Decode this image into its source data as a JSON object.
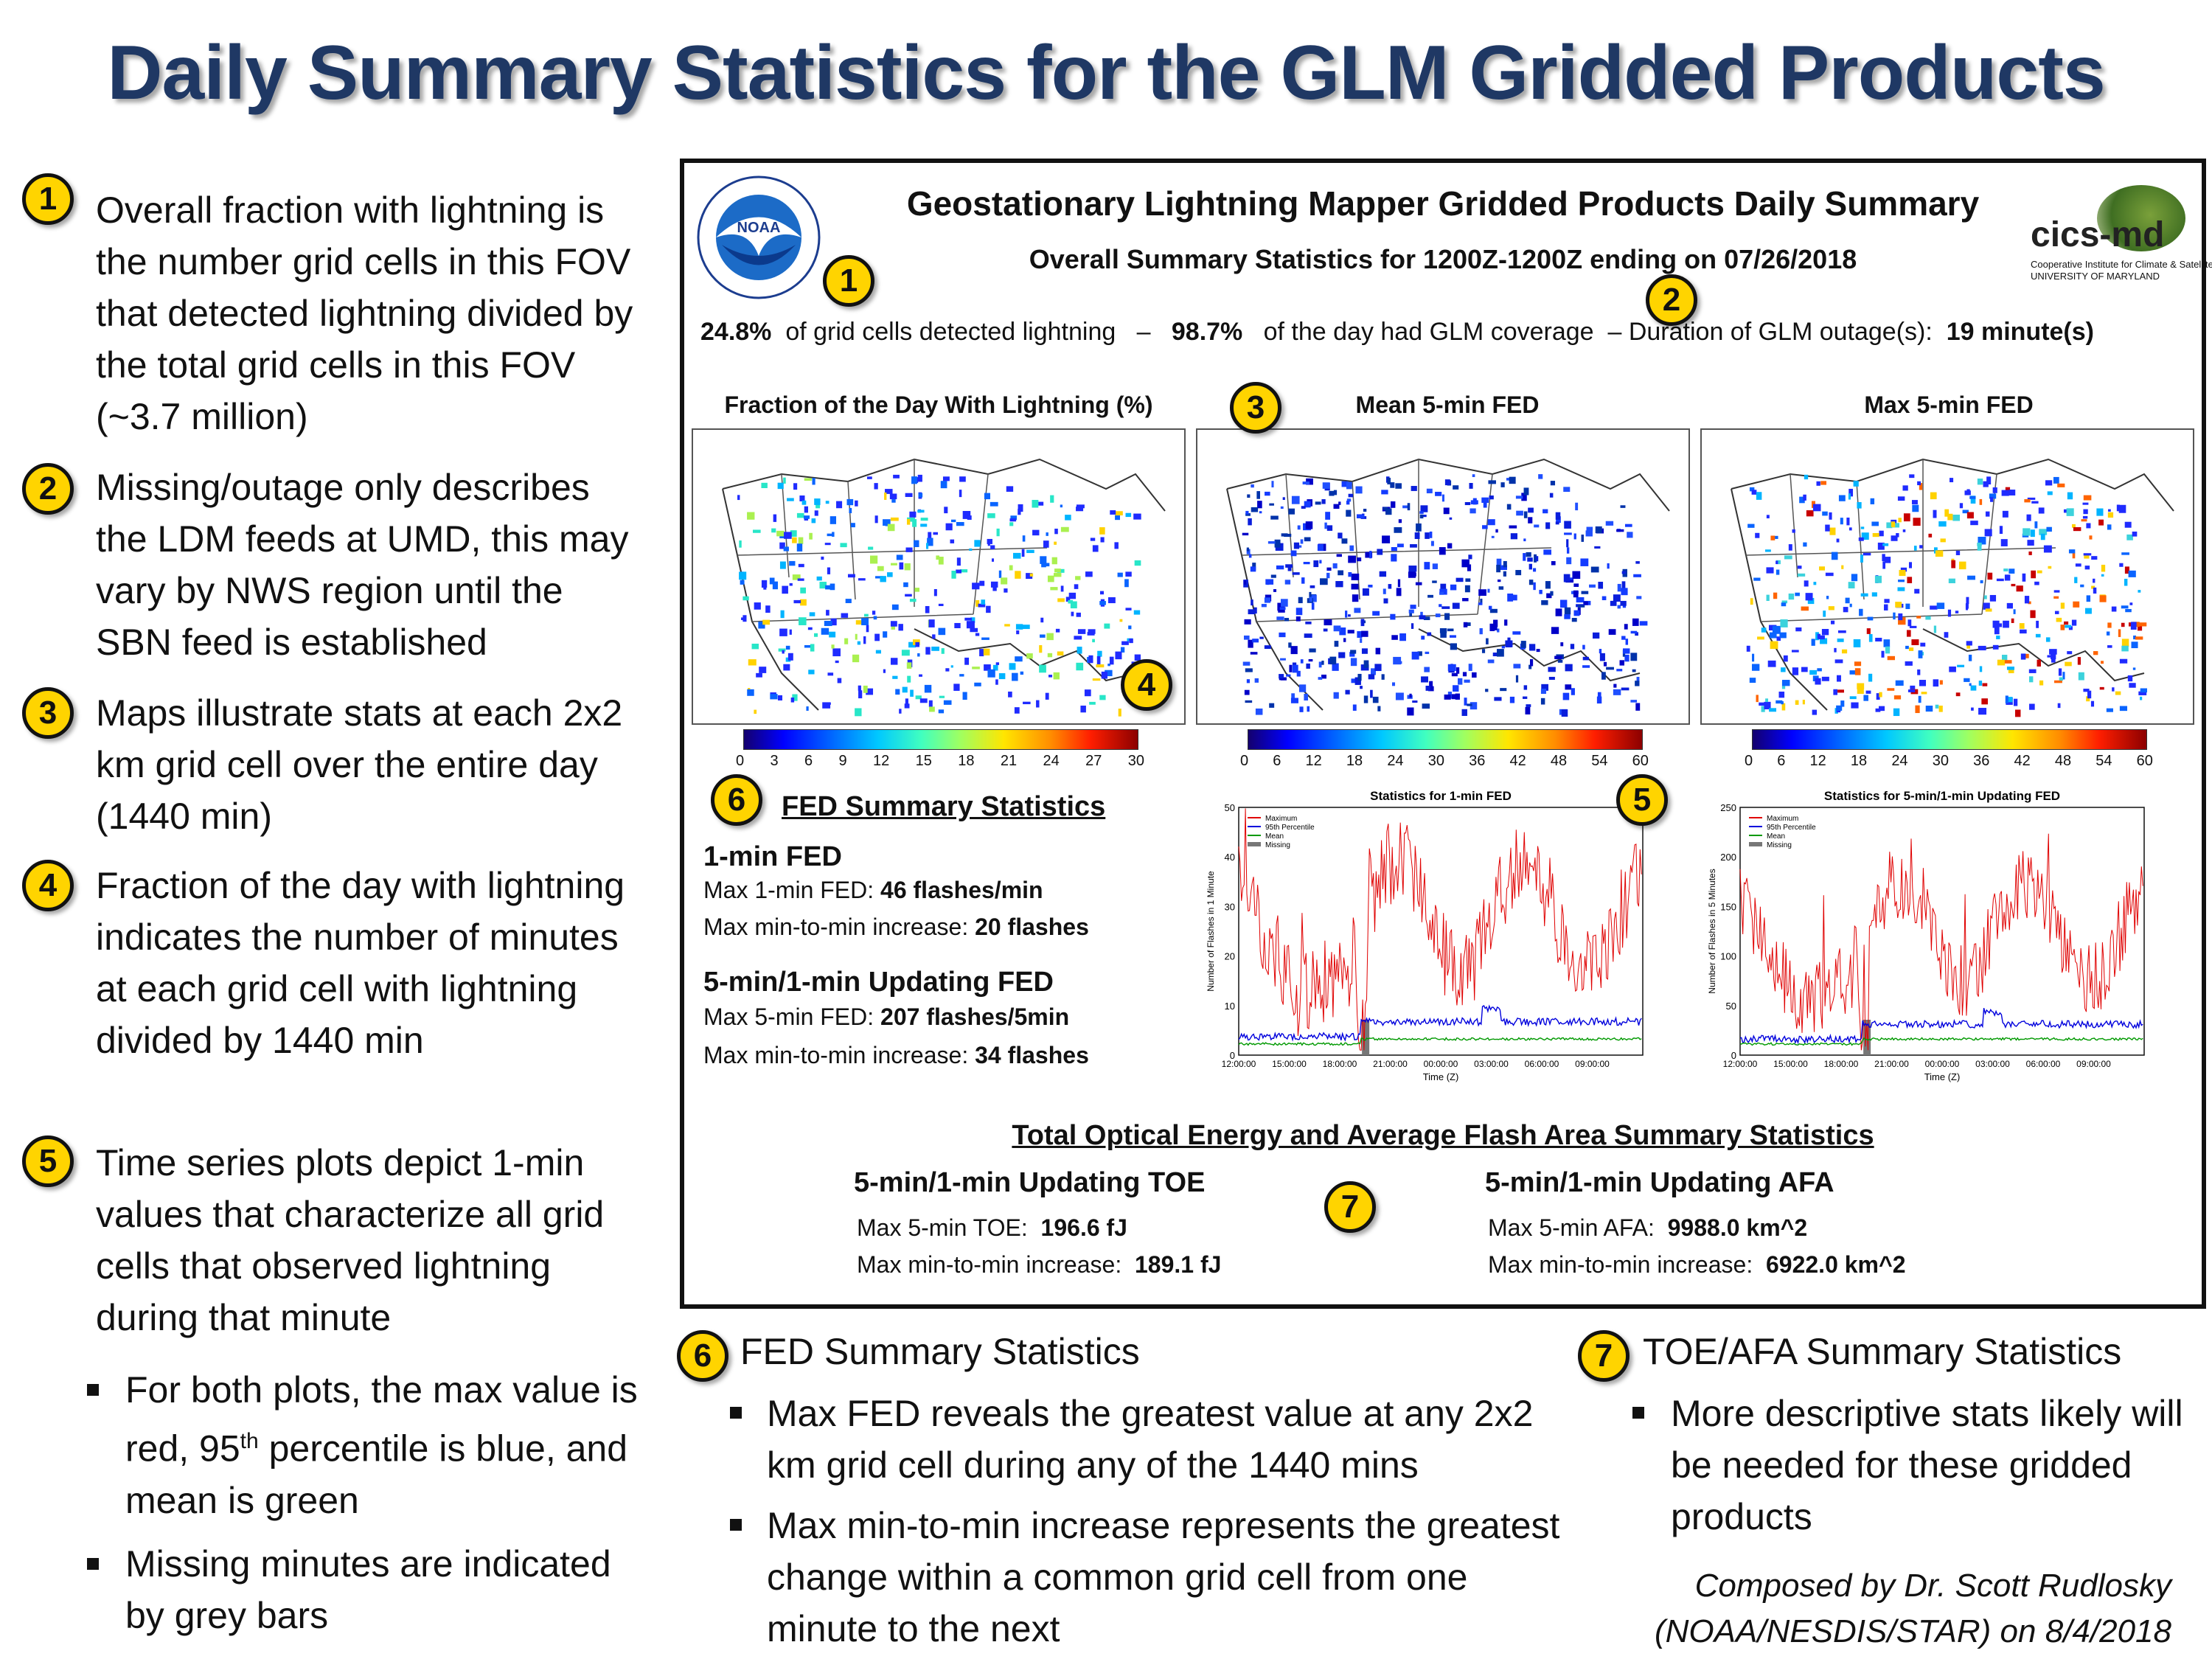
{
  "title": "Daily Summary Statistics for the GLM Gridded Products",
  "notes": [
    {
      "num": "1",
      "text": "Overall fraction with lightning is the number grid cells in this FOV that detected lightning divided by the total grid cells in this FOV (~3.7 million)"
    },
    {
      "num": "2",
      "text": "Missing/outage only describes the LDM feeds at UMD, this may vary by NWS region until the SBN feed is established"
    },
    {
      "num": "3",
      "text": "Maps illustrate stats at each 2x2 km grid cell over the entire day (1440 min)"
    },
    {
      "num": "4",
      "text": "Fraction of the day with lightning indicates the number of minutes at each grid cell with lightning divided by 1440 min"
    },
    {
      "num": "5",
      "text": "Time series plots depict 1-min values that characterize all grid cells that observed lightning during that minute"
    }
  ],
  "sub_bullets": [
    {
      "pre": "For both plots, the max value is red, 95",
      "sup": "th",
      "post": " percentile is blue, and mean is green"
    },
    {
      "pre": "Missing minutes are indicated by grey bars",
      "sup": "",
      "post": ""
    }
  ],
  "panel": {
    "logo_left": "NOAA",
    "logo_right": "cics-md",
    "logo_right_sub1": "Cooperative Institute for Climate & Satellites",
    "logo_right_sub2": "UNIVERSITY OF MARYLAND",
    "title": "Geostationary Lightning Mapper Gridded Products Daily Summary",
    "subtitle": "Overall Summary Statistics for 1200Z-1200Z ending on 07/26/2018",
    "stat_fraction": "24.8%",
    "stat_fraction_label": "of grid cells detected lightning",
    "dash": "–",
    "stat_coverage": "98.7%",
    "stat_coverage_label": "of the day had GLM coverage",
    "dash2": "– Duration of GLM outage(s):",
    "stat_outage": "19 minute(s)",
    "maps": [
      {
        "title": "Fraction of the Day With Lightning (%)",
        "ticks": [
          "0",
          "3",
          "6",
          "9",
          "12",
          "15",
          "18",
          "21",
          "24",
          "27",
          "30"
        ]
      },
      {
        "title": "Mean 5-min FED",
        "ticks": [
          "0",
          "6",
          "12",
          "18",
          "24",
          "30",
          "36",
          "42",
          "48",
          "54",
          "60"
        ]
      },
      {
        "title": "Max 5-min FED",
        "ticks": [
          "0",
          "6",
          "12",
          "18",
          "24",
          "30",
          "36",
          "42",
          "48",
          "54",
          "60"
        ]
      }
    ],
    "fed_header": "FED Summary Statistics",
    "fed1_title": "1-min FED",
    "fed1_max_label": "Max 1-min FED:",
    "fed1_max_value": "46 flashes/min",
    "fed1_inc_label": "Max min-to-min increase:",
    "fed1_inc_value": "20 flashes",
    "fed5_title": "5-min/1-min Updating FED",
    "fed5_max_label": "Max 5-min FED:",
    "fed5_max_value": "207 flashes/5min",
    "fed5_inc_label": "Max min-to-min increase:",
    "fed5_inc_value": "34 flashes",
    "ts1": {
      "title": "Statistics for 1-min FED",
      "ylabel": "Number of Flashes in 1 Minute",
      "xlabel": "Time (Z)",
      "yticks": [
        "0",
        "10",
        "20",
        "30",
        "40",
        "50"
      ]
    },
    "ts2": {
      "title": "Statistics for 5-min/1-min Updating FED",
      "ylabel": "Number of Flashes in 5 Minutes",
      "xlabel": "Time (Z)",
      "yticks": [
        "0",
        "50",
        "100",
        "150",
        "200",
        "250"
      ]
    },
    "ts_xticks": [
      "12:00:00",
      "15:00:00",
      "18:00:00",
      "21:00:00",
      "00:00:00",
      "03:00:00",
      "06:00:00",
      "09:00:00"
    ],
    "legend": [
      "Maximum",
      "95th Percentile",
      "Mean",
      "Missing"
    ],
    "toe_afa_header": "Total Optical Energy and Average Flash Area Summary Statistics",
    "toe_title": "5-min/1-min Updating TOE",
    "toe_max_label": "Max 5-min TOE:",
    "toe_max_value": "196.6 fJ",
    "toe_inc_label": "Max min-to-min increase:",
    "toe_inc_value": "189.1 fJ",
    "afa_title": "5-min/1-min Updating AFA",
    "afa_max_label": "Max 5-min AFA:",
    "afa_max_value": "9988.0 km^2",
    "afa_inc_label": "Max min-to-min increase:",
    "afa_inc_value": "6922.0 km^2"
  },
  "badges": [
    "1",
    "2",
    "3",
    "4",
    "5",
    "6",
    "7"
  ],
  "bottom_fed": {
    "num": "6",
    "title": "FED Summary Statistics",
    "bullets": [
      "Max FED reveals the greatest value at any 2x2 km grid cell during any of the 1440 mins",
      "Max min-to-min increase represents the greatest change within a common grid cell from one minute to the next"
    ]
  },
  "bottom_toe": {
    "num": "7",
    "title": "TOE/AFA Summary Statistics",
    "bullets": [
      "More descriptive stats likely will be needed for these gridded products"
    ]
  },
  "credit_line1": "Composed by Dr. Scott Rudlosky",
  "credit_line2": "(NOAA/NESDIS/STAR) on 8/4/2018",
  "colors": {
    "title": "#1f3864",
    "badge": "#ffd400",
    "max_series": "#e00000",
    "p95_series": "#0000dd",
    "mean_series": "#009900",
    "missing": "#777777"
  }
}
